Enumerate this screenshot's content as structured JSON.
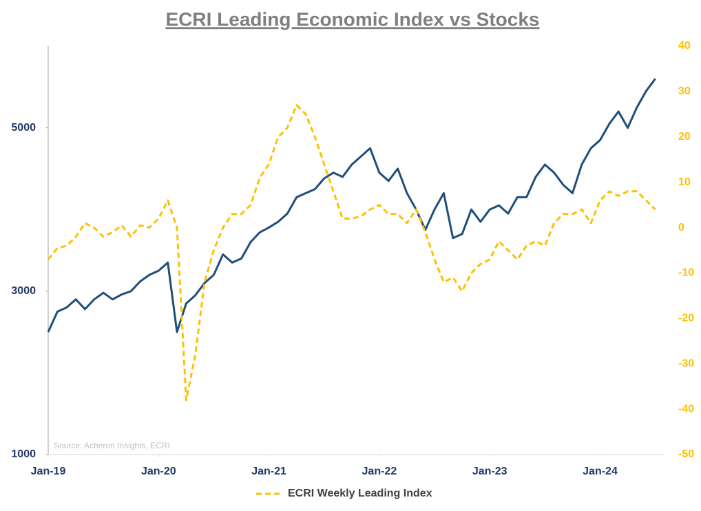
{
  "chart_data": {
    "type": "line",
    "title": "ECRI Leading Economic Index vs Stocks",
    "annotation": "Source: Acheron Insights, ECRI",
    "x": [
      "2019-01",
      "2019-02",
      "2019-03",
      "2019-04",
      "2019-05",
      "2019-06",
      "2019-07",
      "2019-08",
      "2019-09",
      "2019-10",
      "2019-11",
      "2019-12",
      "2020-01",
      "2020-02",
      "2020-03",
      "2020-04",
      "2020-05",
      "2020-06",
      "2020-07",
      "2020-08",
      "2020-09",
      "2020-10",
      "2020-11",
      "2020-12",
      "2021-01",
      "2021-02",
      "2021-03",
      "2021-04",
      "2021-05",
      "2021-06",
      "2021-07",
      "2021-08",
      "2021-09",
      "2021-10",
      "2021-11",
      "2021-12",
      "2022-01",
      "2022-02",
      "2022-03",
      "2022-04",
      "2022-05",
      "2022-06",
      "2022-07",
      "2022-08",
      "2022-09",
      "2022-10",
      "2022-11",
      "2022-12",
      "2023-01",
      "2023-02",
      "2023-03",
      "2023-04",
      "2023-05",
      "2023-06",
      "2023-07",
      "2023-08",
      "2023-09",
      "2023-10",
      "2023-11",
      "2023-12",
      "2024-01",
      "2024-02",
      "2024-03",
      "2024-04",
      "2024-05",
      "2024-06",
      "2024-07"
    ],
    "xlim": [
      "2019-01",
      "2024-08"
    ],
    "xticks": [
      {
        "value": "2019-01",
        "label": "Jan-19"
      },
      {
        "value": "2020-01",
        "label": "Jan-20"
      },
      {
        "value": "2021-01",
        "label": "Jan-21"
      },
      {
        "value": "2022-01",
        "label": "Jan-22"
      },
      {
        "value": "2023-01",
        "label": "Jan-23"
      },
      {
        "value": "2024-01",
        "label": "Jan-24"
      }
    ],
    "ylim": [
      1000,
      6000
    ],
    "yticks": [
      1000,
      3000,
      5000
    ],
    "ytick_color": "#1f3864",
    "y2lim": [
      -50,
      40
    ],
    "y2ticks": [
      -50,
      -40,
      -30,
      -20,
      -10,
      0,
      10,
      20,
      30,
      40
    ],
    "y2tick_color": "#ffc000",
    "series": [
      {
        "color": "#1f4e79",
        "dashed": false,
        "values": [
          2500,
          2750,
          2800,
          2900,
          2780,
          2900,
          2980,
          2900,
          2960,
          3000,
          3120,
          3200,
          3250,
          3350,
          2500,
          2850,
          2950,
          3100,
          3200,
          3450,
          3350,
          3400,
          3600,
          3720,
          3780,
          3850,
          3950,
          4150,
          4200,
          4250,
          4380,
          4450,
          4400,
          4550,
          4650,
          4750,
          4450,
          4350,
          4500,
          4200,
          4000,
          3750,
          4000,
          4200,
          3650,
          3700,
          4000,
          3850,
          4000,
          4050,
          3950,
          4150,
          4150,
          4400,
          4550,
          4450,
          4300,
          4200,
          4550,
          4750,
          4850,
          5050,
          5200,
          5000,
          5250,
          5450,
          5600
        ]
      },
      {
        "name": "ECRI Weekly Leading Index",
        "color": "#ffc000",
        "dashed": true,
        "axis": "y2",
        "values": [
          -7,
          -4.5,
          -4,
          -2,
          1,
          0,
          -2,
          -1,
          0.5,
          -2,
          0.5,
          0,
          2,
          6,
          0,
          -38,
          -28,
          -12,
          -5,
          0,
          3,
          3,
          5,
          11,
          14,
          20,
          22,
          27,
          25,
          20,
          14,
          8,
          2,
          2,
          2.5,
          4,
          5,
          3,
          3,
          1,
          4,
          -1,
          -7,
          -12,
          -11,
          -14,
          -10,
          -8,
          -7,
          -3,
          -5,
          -7,
          -4,
          -3,
          -4,
          1,
          3,
          3,
          4,
          1,
          6,
          8,
          7,
          8,
          8,
          6,
          4
        ]
      }
    ]
  }
}
